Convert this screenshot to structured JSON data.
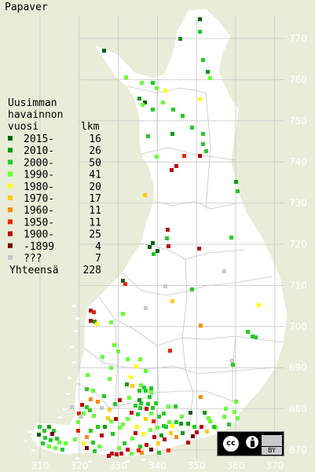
{
  "title": "Papaver",
  "legend": {
    "heading": [
      "Uusimman",
      "havainnon",
      "vuosi"
    ],
    "count_header": "lkm",
    "rows": [
      {
        "label": "2015-",
        "count": "16",
        "color": "#006400"
      },
      {
        "label": "2010-",
        "count": "26",
        "color": "#119911"
      },
      {
        "label": "2000-",
        "count": "50",
        "color": "#22cc22"
      },
      {
        "label": "1990-",
        "count": "41",
        "color": "#66ff33"
      },
      {
        "label": "1980-",
        "count": "20",
        "color": "#ffff00"
      },
      {
        "label": "1970-",
        "count": "17",
        "color": "#ffcc00"
      },
      {
        "label": "1960-",
        "count": "11",
        "color": "#ff8800"
      },
      {
        "label": "1950-",
        "count": "11",
        "color": "#ee2200"
      },
      {
        "label": "1900-",
        "count": "25",
        "color": "#bb0000"
      },
      {
        "label": "-1899",
        "count": "4",
        "color": "#770000"
      },
      {
        "label": "???",
        "count": "7",
        "color": "#c8c8c8"
      }
    ],
    "total_label": "Yhteensä",
    "total_count": "228"
  },
  "y_axis": [
    "770",
    "760",
    "750",
    "740",
    "730",
    "720",
    "710",
    "700",
    "690",
    "680",
    "670"
  ],
  "x_axis": [
    "310",
    "320",
    "330",
    "340",
    "350",
    "360",
    "370"
  ],
  "license": {
    "cc": "cc",
    "by": "BY"
  },
  "colors": {
    "background": "#e8ecd8",
    "land": "#ffffff",
    "grid": "#c8c8c8",
    "axis_text": "#ffffff"
  },
  "observations": [
    [
      252,
      22,
      "2015-"
    ],
    [
      227,
      47,
      "2010-"
    ],
    [
      252,
      38,
      "2000-"
    ],
    [
      130,
      62,
      "2015-"
    ],
    [
      256,
      74,
      "2000-"
    ],
    [
      262,
      89,
      "2010-"
    ],
    [
      265,
      97,
      "1990-"
    ],
    [
      158,
      96,
      "1990-"
    ],
    [
      178,
      103,
      "1990-"
    ],
    [
      192,
      103,
      "2000-"
    ],
    [
      208,
      113,
      "1980-"
    ],
    [
      197,
      110,
      "1990-"
    ],
    [
      175,
      123,
      "2010-"
    ],
    [
      182,
      128,
      "2015-"
    ],
    [
      179,
      131,
      "1990-"
    ],
    [
      205,
      128,
      "1990-"
    ],
    [
      252,
      124,
      "1980-"
    ],
    [
      192,
      137,
      "2000-"
    ],
    [
      218,
      137,
      "2000-"
    ],
    [
      230,
      145,
      "2000-"
    ],
    [
      217,
      168,
      "2010-"
    ],
    [
      242,
      160,
      "2000-"
    ],
    [
      186,
      171,
      "2000-"
    ],
    [
      256,
      168,
      "2000-"
    ],
    [
      256,
      181,
      "2000-"
    ],
    [
      260,
      190,
      "2000-"
    ],
    [
      252,
      196,
      "1900-"
    ],
    [
      197,
      197,
      "1990-"
    ],
    [
      232,
      196,
      "1950-"
    ],
    [
      222,
      209,
      "1900-"
    ],
    [
      216,
      214,
      "1900-"
    ],
    [
      298,
      229,
      "2010-"
    ],
    [
      300,
      241,
      "2000-"
    ],
    [
      182,
      246,
      "1970-"
    ],
    [
      211,
      290,
      "1900-"
    ],
    [
      210,
      301,
      "2000-"
    ],
    [
      192,
      307,
      "2015-"
    ],
    [
      188,
      312,
      "2015-"
    ],
    [
      198,
      317,
      "2015-"
    ],
    [
      193,
      321,
      "2000-"
    ],
    [
      212,
      311,
      "1900-"
    ],
    [
      292,
      300,
      "2000-"
    ],
    [
      251,
      314,
      "1900-"
    ],
    [
      283,
      343,
      "???"
    ],
    [
      154,
      355,
      "2015-"
    ],
    [
      157,
      359,
      "1950-"
    ],
    [
      208,
      362,
      "???"
    ],
    [
      242,
      366,
      "2000-"
    ],
    [
      217,
      381,
      "1970-"
    ],
    [
      327,
      386,
      "1980-"
    ],
    [
      183,
      390,
      "???"
    ],
    [
      113,
      393,
      "1900-"
    ],
    [
      117,
      395,
      "1950-"
    ],
    [
      113,
      406,
      "1900-"
    ],
    [
      118,
      407,
      "2010-"
    ],
    [
      121,
      410,
      "1980-"
    ],
    [
      154,
      397,
      "1990-"
    ],
    [
      139,
      408,
      "1990-"
    ],
    [
      253,
      412,
      "1960-"
    ],
    [
      313,
      420,
      "2000-"
    ],
    [
      319,
      426,
      "2000-"
    ],
    [
      323,
      427,
      "2000-"
    ],
    [
      143,
      437,
      "1990-"
    ],
    [
      214,
      444,
      "1950-"
    ],
    [
      293,
      457,
      "???"
    ],
    [
      294,
      462,
      "2000-"
    ],
    [
      109,
      475,
      "1990-"
    ],
    [
      183,
      470,
      "1990-"
    ],
    [
      164,
      478,
      "1980-"
    ],
    [
      166,
      489,
      "1970-"
    ],
    [
      159,
      487,
      "2010-"
    ],
    [
      177,
      488,
      "1990-"
    ],
    [
      183,
      495,
      "2000-"
    ],
    [
      190,
      492,
      "2000-"
    ],
    [
      188,
      503,
      "2000-"
    ],
    [
      175,
      507,
      "2010-"
    ],
    [
      170,
      514,
      "2000-"
    ],
    [
      176,
      517,
      "2000-"
    ],
    [
      184,
      518,
      "1900-"
    ],
    [
      192,
      517,
      "2000-"
    ],
    [
      162,
      504,
      "1990-"
    ],
    [
      150,
      507,
      "1900-"
    ],
    [
      144,
      512,
      "2000-"
    ],
    [
      137,
      519,
      "1970-"
    ],
    [
      113,
      506,
      "1960-"
    ],
    [
      122,
      509,
      "1960-"
    ],
    [
      102,
      513,
      "1900-"
    ],
    [
      108,
      516,
      "2000-"
    ],
    [
      98,
      524,
      "1950-"
    ],
    [
      104,
      524,
      "1990-"
    ],
    [
      221,
      515,
      "2000-"
    ],
    [
      212,
      515,
      "1990-"
    ],
    [
      206,
      524,
      "2000-"
    ],
    [
      253,
      503,
      "1960-"
    ],
    [
      298,
      509,
      "1990-"
    ],
    [
      285,
      518,
      "1990-"
    ],
    [
      240,
      523,
      "2015-"
    ],
    [
      237,
      537,
      "2010-"
    ],
    [
      245,
      541,
      "2000-"
    ],
    [
      248,
      548,
      "1900-"
    ],
    [
      283,
      528,
      "1990-"
    ],
    [
      265,
      534,
      "1990-"
    ],
    [
      272,
      542,
      "1990-"
    ],
    [
      254,
      541,
      "1900-"
    ],
    [
      261,
      547,
      "1970-"
    ],
    [
      165,
      523,
      "1900-"
    ],
    [
      160,
      531,
      "1990-"
    ],
    [
      154,
      538,
      "1990-"
    ],
    [
      172,
      541,
      "1980-"
    ],
    [
      183,
      531,
      "1970-"
    ],
    [
      193,
      534,
      "1950-"
    ],
    [
      189,
      545,
      "1990-"
    ],
    [
      180,
      550,
      "1980-"
    ],
    [
      170,
      549,
      "1900-"
    ],
    [
      166,
      556,
      "1990-"
    ],
    [
      156,
      562,
      "2000-"
    ],
    [
      149,
      568,
      "1990-"
    ],
    [
      140,
      575,
      "1900-"
    ],
    [
      146,
      576,
      "1900-"
    ],
    [
      136,
      578,
      "1900-"
    ],
    [
      176,
      566,
      "2000-"
    ],
    [
      178,
      574,
      "1960-"
    ],
    [
      194,
      554,
      "1900-"
    ],
    [
      203,
      552,
      "2010-"
    ],
    [
      207,
      557,
      "1900-"
    ],
    [
      215,
      549,
      "1970-"
    ],
    [
      222,
      554,
      "1960-"
    ],
    [
      230,
      549,
      "2010-"
    ],
    [
      199,
      562,
      "1970-"
    ],
    [
      212,
      571,
      "1950-"
    ],
    [
      122,
      541,
      "2000-"
    ],
    [
      113,
      546,
      "2000-"
    ],
    [
      108,
      554,
      "1960-"
    ],
    [
      97,
      546,
      "1950-"
    ],
    [
      93,
      557,
      "1990-"
    ],
    [
      104,
      562,
      "1980-"
    ],
    [
      116,
      561,
      "2000-"
    ],
    [
      124,
      566,
      "1990-"
    ],
    [
      127,
      552,
      "1900-"
    ],
    [
      48,
      541,
      "2000-"
    ],
    [
      54,
      546,
      "2000-"
    ],
    [
      60,
      541,
      "2010-"
    ],
    [
      66,
      546,
      "2000-"
    ],
    [
      47,
      551,
      "2015-"
    ],
    [
      55,
      555,
      "2000-"
    ],
    [
      62,
      558,
      "2000-"
    ],
    [
      70,
      556,
      "2000-"
    ],
    [
      52,
      562,
      "2000-"
    ],
    [
      60,
      566,
      "1990-"
    ],
    [
      68,
      568,
      "1990-"
    ],
    [
      77,
      570,
      "2000-"
    ],
    [
      73,
      561,
      "1990-"
    ],
    [
      130,
      502,
      "2000-"
    ],
    [
      89,
      516,
      "???"
    ],
    [
      117,
      527,
      "1990-"
    ],
    [
      139,
      534,
      "1990-"
    ],
    [
      131,
      541,
      "2010-"
    ],
    [
      177,
      511,
      "2000-"
    ],
    [
      186,
      512,
      "2000-"
    ],
    [
      196,
      511,
      "2000-"
    ],
    [
      175,
      495,
      "2000-"
    ],
    [
      181,
      491,
      "2000-"
    ],
    [
      190,
      497,
      "1990-"
    ],
    [
      137,
      480,
      "1990-"
    ],
    [
      139,
      466,
      "1990-"
    ],
    [
      108,
      493,
      "2000-"
    ],
    [
      116,
      495,
      "1990-"
    ],
    [
      258,
      523,
      "2010-"
    ],
    [
      263,
      530,
      "1990-"
    ],
    [
      229,
      528,
      "1990-"
    ],
    [
      213,
      535,
      "1990-"
    ],
    [
      217,
      540,
      "1980-"
    ],
    [
      228,
      537,
      "2010-"
    ],
    [
      237,
      561,
      "1900-"
    ],
    [
      243,
      553,
      "-1899"
    ],
    [
      184,
      564,
      "1900-"
    ],
    [
      174,
      571,
      "1950-"
    ],
    [
      190,
      570,
      "-1899"
    ],
    [
      200,
      574,
      "2000-"
    ],
    [
      160,
      570,
      "1900-"
    ],
    [
      165,
      575,
      "1990-"
    ],
    [
      152,
      575,
      "1900-"
    ],
    [
      135,
      530,
      "1970-"
    ],
    [
      127,
      517,
      "???"
    ],
    [
      101,
      528,
      "???"
    ],
    [
      112,
      520,
      "2000-"
    ],
    [
      97,
      535,
      "1990-"
    ],
    [
      190,
      524,
      "1990-"
    ],
    [
      200,
      528,
      "2000-"
    ],
    [
      222,
      535,
      "2000-"
    ],
    [
      270,
      541,
      "2000-"
    ],
    [
      289,
      538,
      "2000-"
    ],
    [
      296,
      522,
      "1990-"
    ],
    [
      300,
      530,
      "1990-"
    ],
    [
      108,
      568,
      "-1899"
    ],
    [
      118,
      572,
      "2000-"
    ],
    [
      145,
      531,
      "1900-"
    ],
    [
      150,
      542,
      "1990-"
    ],
    [
      141,
      550,
      "2000-"
    ],
    [
      81,
      562,
      "1990-"
    ],
    [
      64,
      550,
      "-1899"
    ],
    [
      173,
      525,
      "2000-"
    ],
    [
      198,
      542,
      "1990-"
    ],
    [
      209,
      541,
      "2000-"
    ],
    [
      171,
      464,
      "1980-"
    ],
    [
      176,
      455,
      "1990-"
    ],
    [
      160,
      455,
      "1990-"
    ],
    [
      148,
      445,
      "1990-"
    ],
    [
      128,
      452,
      "1990-"
    ],
    [
      206,
      540,
      "2000-"
    ]
  ]
}
